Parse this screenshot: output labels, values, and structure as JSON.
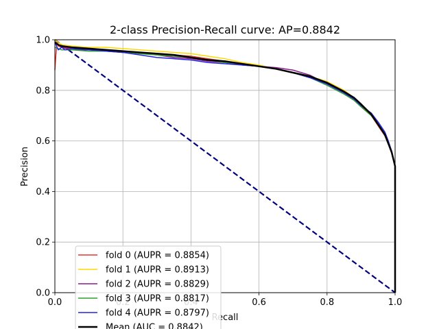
{
  "chart_data": {
    "type": "line",
    "title": "2-class Precision-Recall curve: AP=0.8842",
    "xlabel": "Recall",
    "ylabel": "Precision",
    "xlim": [
      0,
      1
    ],
    "ylim": [
      0,
      1
    ],
    "xticks": [
      "0.0",
      "0.2",
      "0.4",
      "0.6",
      "0.8",
      "1.0"
    ],
    "yticks": [
      "0.0",
      "0.2",
      "0.4",
      "0.6",
      "0.8",
      "1.0"
    ],
    "grid": true,
    "legend_position": "lower-left",
    "series": [
      {
        "name": "fold 0 (AUPR = 0.8854)",
        "color": "#e8312a",
        "width": 1.5,
        "x": [
          0,
          0.003,
          0.006,
          0.01,
          0.02,
          0.05,
          0.1,
          0.15,
          0.2,
          0.25,
          0.3,
          0.35,
          0.4,
          0.45,
          0.5,
          0.55,
          0.6,
          0.65,
          0.7,
          0.75,
          0.8,
          0.85,
          0.88,
          0.9,
          0.93,
          0.95,
          0.97,
          0.98,
          0.99,
          1.0,
          1.0
        ],
        "y": [
          0.88,
          0.94,
          0.99,
          0.975,
          0.97,
          0.965,
          0.96,
          0.96,
          0.955,
          0.95,
          0.945,
          0.94,
          0.935,
          0.925,
          0.915,
          0.905,
          0.895,
          0.885,
          0.87,
          0.85,
          0.825,
          0.79,
          0.76,
          0.735,
          0.7,
          0.66,
          0.62,
          0.59,
          0.55,
          0.5,
          0.0
        ]
      },
      {
        "name": "fold 1 (AUPR = 0.8913)",
        "color": "#ffd700",
        "width": 1.5,
        "x": [
          0,
          0.01,
          0.02,
          0.05,
          0.1,
          0.15,
          0.2,
          0.25,
          0.3,
          0.35,
          0.4,
          0.45,
          0.5,
          0.55,
          0.6,
          0.65,
          0.7,
          0.75,
          0.8,
          0.85,
          0.88,
          0.9,
          0.93,
          0.95,
          0.97,
          0.98,
          0.99,
          1.0,
          1.0
        ],
        "y": [
          1.0,
          0.99,
          0.98,
          0.975,
          0.97,
          0.97,
          0.965,
          0.96,
          0.955,
          0.95,
          0.945,
          0.935,
          0.925,
          0.91,
          0.9,
          0.885,
          0.87,
          0.855,
          0.835,
          0.8,
          0.77,
          0.745,
          0.705,
          0.665,
          0.625,
          0.59,
          0.555,
          0.5,
          0.0
        ]
      },
      {
        "name": "fold 2 (AUPR = 0.8829)",
        "color": "#8b1a8b",
        "width": 1.5,
        "x": [
          0,
          0.01,
          0.02,
          0.05,
          0.1,
          0.15,
          0.2,
          0.25,
          0.3,
          0.35,
          0.4,
          0.45,
          0.5,
          0.55,
          0.6,
          0.65,
          0.7,
          0.75,
          0.8,
          0.85,
          0.88,
          0.9,
          0.93,
          0.95,
          0.97,
          0.98,
          0.99,
          1.0,
          1.0
        ],
        "y": [
          0.99,
          0.98,
          0.97,
          0.96,
          0.96,
          0.955,
          0.95,
          0.945,
          0.94,
          0.93,
          0.925,
          0.915,
          0.91,
          0.9,
          0.895,
          0.89,
          0.88,
          0.86,
          0.825,
          0.79,
          0.765,
          0.74,
          0.7,
          0.665,
          0.625,
          0.595,
          0.555,
          0.5,
          0.0
        ]
      },
      {
        "name": "fold 3 (AUPR = 0.8817)",
        "color": "#2ca02c",
        "width": 1.5,
        "x": [
          0,
          0.01,
          0.02,
          0.05,
          0.1,
          0.15,
          0.2,
          0.25,
          0.3,
          0.35,
          0.4,
          0.45,
          0.5,
          0.55,
          0.6,
          0.65,
          0.7,
          0.75,
          0.8,
          0.85,
          0.88,
          0.9,
          0.93,
          0.95,
          0.97,
          0.98,
          0.99,
          1.0,
          1.0
        ],
        "y": [
          0.97,
          0.965,
          0.96,
          0.96,
          0.955,
          0.955,
          0.95,
          0.945,
          0.94,
          0.935,
          0.93,
          0.92,
          0.91,
          0.905,
          0.895,
          0.885,
          0.87,
          0.85,
          0.82,
          0.785,
          0.76,
          0.735,
          0.7,
          0.665,
          0.625,
          0.59,
          0.555,
          0.5,
          0.0
        ]
      },
      {
        "name": "fold 4 (AUPR = 0.8797)",
        "color": "#2323e0",
        "width": 1.5,
        "x": [
          0,
          0.01,
          0.02,
          0.03,
          0.05,
          0.1,
          0.15,
          0.2,
          0.25,
          0.3,
          0.35,
          0.4,
          0.45,
          0.5,
          0.55,
          0.6,
          0.65,
          0.7,
          0.75,
          0.8,
          0.85,
          0.88,
          0.9,
          0.93,
          0.95,
          0.97,
          0.98,
          0.99,
          1.0,
          1.0
        ],
        "y": [
          0.99,
          0.96,
          0.97,
          0.96,
          0.965,
          0.96,
          0.955,
          0.95,
          0.94,
          0.93,
          0.925,
          0.92,
          0.91,
          0.905,
          0.9,
          0.895,
          0.885,
          0.87,
          0.85,
          0.825,
          0.79,
          0.765,
          0.74,
          0.71,
          0.675,
          0.635,
          0.6,
          0.56,
          0.5,
          0.0
        ]
      },
      {
        "name": "Mean (AUC = 0.8842)",
        "color": "#000000",
        "width": 2.5,
        "x": [
          0,
          0.01,
          0.02,
          0.05,
          0.1,
          0.15,
          0.2,
          0.25,
          0.3,
          0.35,
          0.4,
          0.45,
          0.5,
          0.55,
          0.6,
          0.65,
          0.7,
          0.75,
          0.8,
          0.85,
          0.88,
          0.9,
          0.93,
          0.95,
          0.97,
          0.98,
          0.99,
          1.0,
          1.0
        ],
        "y": [
          0.99,
          0.98,
          0.975,
          0.97,
          0.965,
          0.96,
          0.955,
          0.95,
          0.945,
          0.94,
          0.93,
          0.92,
          0.915,
          0.905,
          0.895,
          0.885,
          0.87,
          0.855,
          0.83,
          0.795,
          0.77,
          0.745,
          0.705,
          0.665,
          0.625,
          0.59,
          0.555,
          0.5,
          0.0
        ]
      }
    ],
    "reference_line": {
      "x": [
        0,
        1
      ],
      "y": [
        1,
        0
      ],
      "color": "#000080",
      "dashed": true
    }
  }
}
